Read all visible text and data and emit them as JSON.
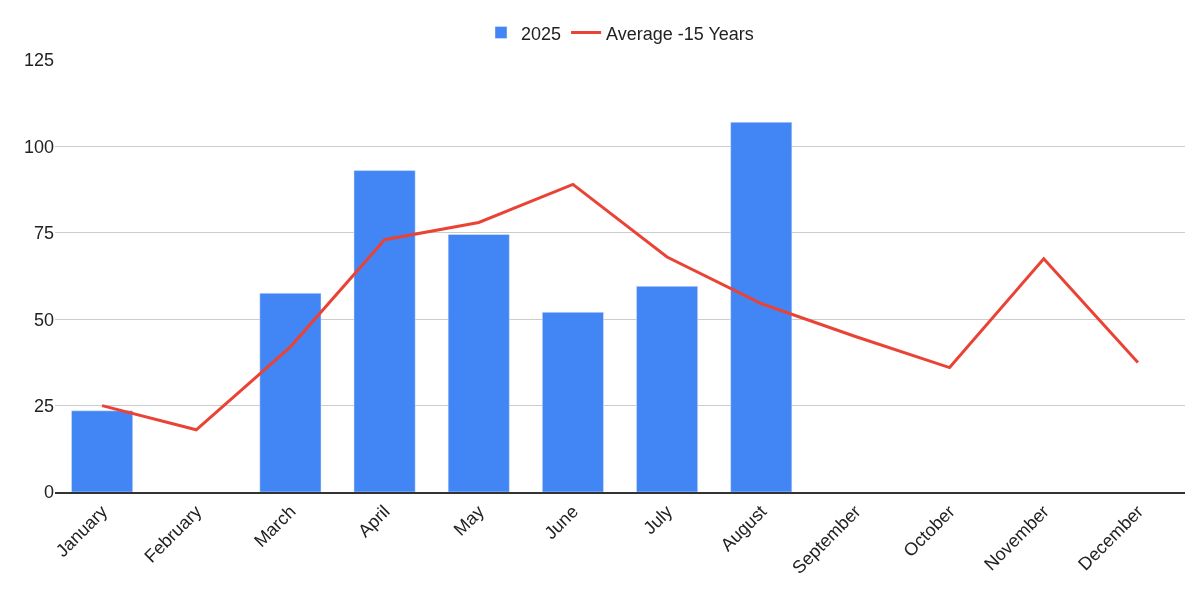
{
  "chart_data": {
    "type": "bar",
    "categories": [
      "January",
      "February",
      "March",
      "April",
      "May",
      "June",
      "July",
      "August",
      "September",
      "October",
      "November",
      "December"
    ],
    "series": [
      {
        "name": "2025",
        "color": "#4285f4",
        "values": [
          23.5,
          null,
          57.5,
          93,
          74.5,
          52,
          59.5,
          107,
          null,
          null,
          null,
          null
        ]
      },
      {
        "name": "Average -15 Years",
        "type": "line",
        "color": "#ea4335",
        "values": [
          25,
          18,
          42,
          73,
          78,
          89,
          68,
          54.5,
          45,
          36,
          67.5,
          37.5
        ]
      }
    ],
    "ylim": [
      0,
      125
    ],
    "yticks": [
      0,
      25,
      50,
      75,
      100,
      125
    ],
    "grid": "y",
    "legend": "top",
    "marker": "none",
    "line_style": "solid"
  }
}
